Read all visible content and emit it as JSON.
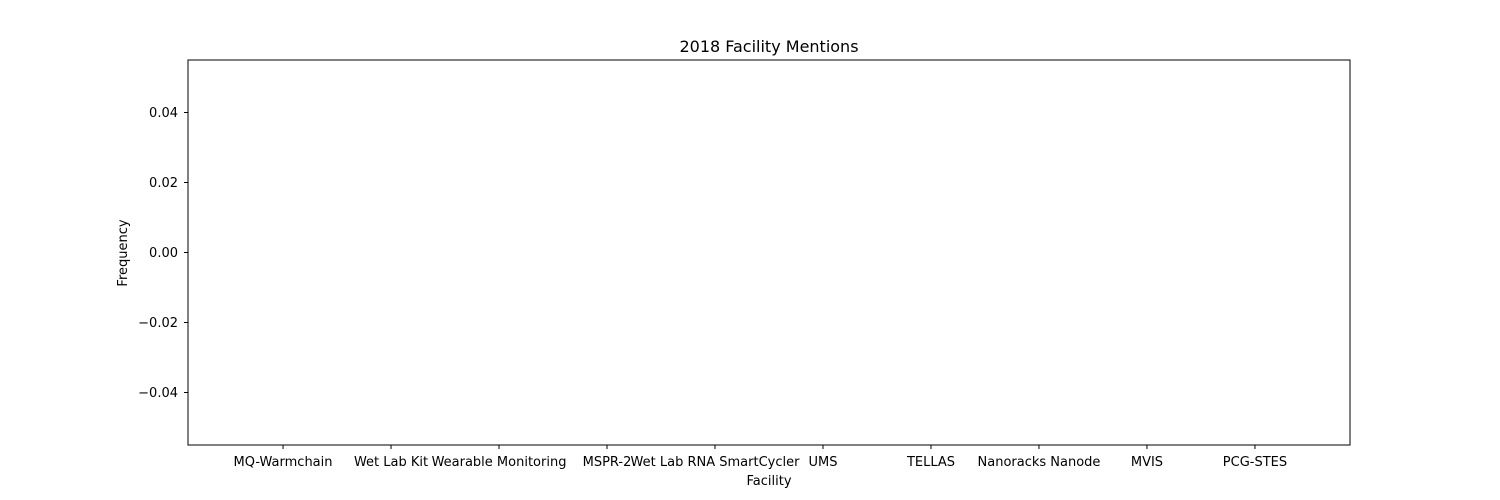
{
  "chart_data": {
    "type": "bar",
    "title": "2018 Facility Mentions",
    "xlabel": "Facility",
    "ylabel": "Frequency",
    "categories": [
      "MQ-Warmchain",
      "Wet Lab Kit",
      "Wearable Monitoring",
      "MSPR-2",
      "Wet Lab RNA SmartCycler",
      "UMS",
      "TELLAS",
      "Nanoracks Nanode",
      "MVIS",
      "PCG-STES"
    ],
    "values": [
      0,
      0,
      0,
      0,
      0,
      0,
      0,
      0,
      0,
      0
    ],
    "ylim": [
      -0.055,
      0.055
    ],
    "yticks": [
      -0.04,
      -0.02,
      0.0,
      0.02,
      0.04
    ],
    "ytick_labels": [
      "−0.04",
      "−0.02",
      "0.00",
      "0.02",
      "0.04"
    ],
    "grid": false,
    "colors": {
      "axes": "#000000",
      "background": "#ffffff",
      "bar": "#1f77b4"
    }
  }
}
